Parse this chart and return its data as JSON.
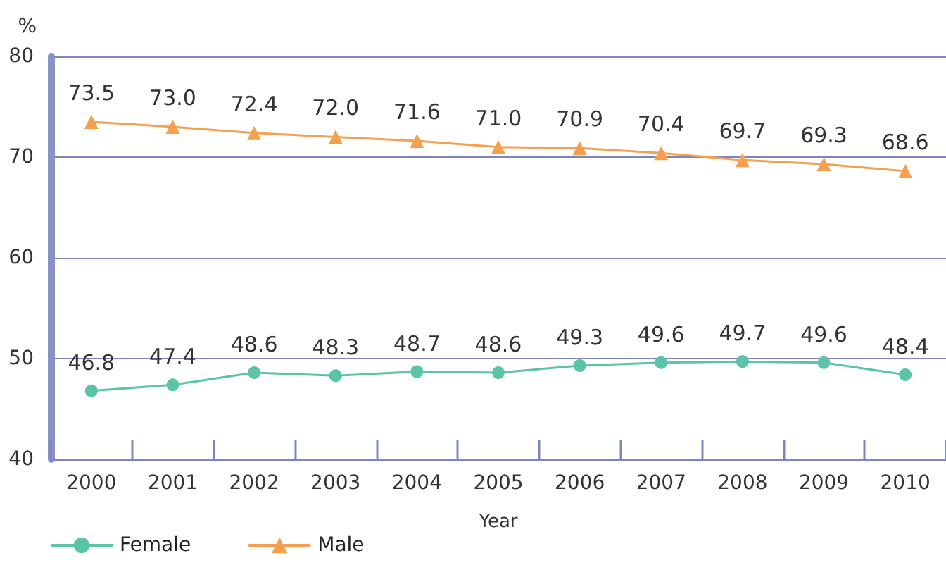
{
  "chart_data": {
    "type": "line",
    "xlabel": "Year",
    "ylabel": "%",
    "categories": [
      "2000",
      "2001",
      "2002",
      "2003",
      "2004",
      "2005",
      "2006",
      "2007",
      "2008",
      "2009",
      "2010"
    ],
    "series": [
      {
        "name": "Female",
        "color": "#5cc4a6",
        "marker": "circle",
        "values": [
          46.8,
          47.4,
          48.6,
          48.3,
          48.7,
          48.6,
          49.3,
          49.6,
          49.7,
          49.6,
          48.4
        ],
        "value_labels": [
          "46.8",
          "47.4",
          "48.6",
          "48.3",
          "48.7",
          "48.6",
          "49.3",
          "49.6",
          "49.7",
          "49.6",
          "48.4"
        ]
      },
      {
        "name": "Male",
        "color": "#f5a04f",
        "marker": "triangle",
        "values": [
          73.5,
          73.0,
          72.4,
          72.0,
          71.6,
          71.0,
          70.9,
          70.4,
          69.7,
          69.3,
          68.6
        ],
        "value_labels": [
          "73.5",
          "73.0",
          "72.4",
          "72.0",
          "71.6",
          "71.0",
          "70.9",
          "70.4",
          "69.7",
          "69.3",
          "68.6"
        ]
      }
    ],
    "ylim": [
      40,
      80
    ],
    "yticks": [
      40,
      50,
      60,
      70,
      80
    ],
    "grid": "y",
    "legend": "bottom left"
  }
}
